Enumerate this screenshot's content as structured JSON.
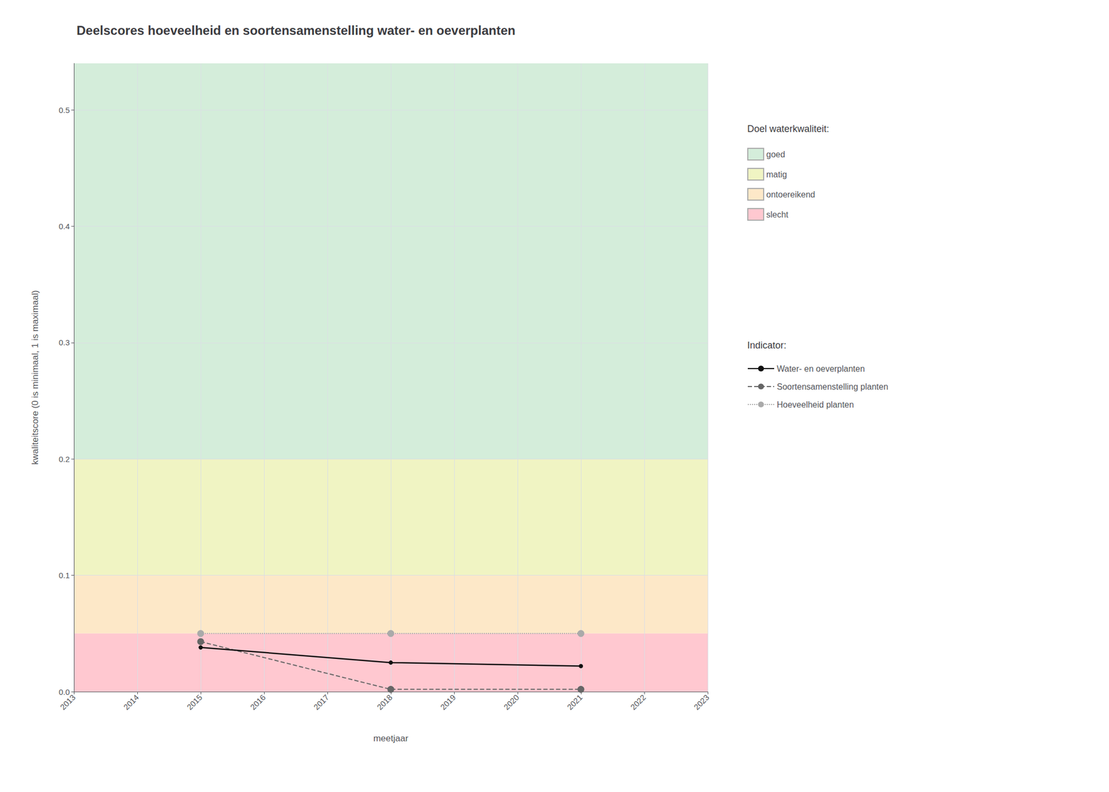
{
  "chart_data": {
    "type": "line",
    "title": "Deelscores hoeveelheid en soortensamenstelling water- en oeverplanten",
    "xlabel": "meetjaar",
    "ylabel": "kwaliteitscore (0 is minimaal, 1 is maximaal)",
    "xlim": [
      2013,
      2023
    ],
    "ylim": [
      0.0,
      0.54
    ],
    "xticks": [
      2013,
      2014,
      2015,
      2016,
      2017,
      2018,
      2019,
      2020,
      2021,
      2022,
      2023
    ],
    "yticks": [
      {
        "value": 0.0,
        "label": "0.0"
      },
      0.1,
      0.2,
      0.3,
      0.4,
      0.5
    ],
    "grid": true,
    "zone_legend_title": "Doel waterkwaliteit:",
    "zones": [
      {
        "name": "goed",
        "ymin": 0.2,
        "ymax": 0.54,
        "color": "#d4edda"
      },
      {
        "name": "matig",
        "ymin": 0.1,
        "ymax": 0.2,
        "color": "#f0f4c3"
      },
      {
        "name": "ontoereikend",
        "ymin": 0.05,
        "ymax": 0.1,
        "color": "#fde8c8"
      },
      {
        "name": "slecht",
        "ymin": 0.0,
        "ymax": 0.05,
        "color": "#ffc8d0"
      }
    ],
    "series_legend_title": "Indicator:",
    "x": [
      2015,
      2018,
      2021
    ],
    "series": [
      {
        "name": "Hoeveelheid planten",
        "color": "#aaaaaa",
        "line_style": "dotted",
        "marker": "circle",
        "values": [
          0.05,
          0.05,
          0.05
        ]
      },
      {
        "name": "Soortensamenstelling planten",
        "color": "#666666",
        "line_style": "dashed",
        "marker": "circle",
        "values": [
          0.043,
          0.002,
          0.002
        ]
      },
      {
        "name": "Water- en oeverplanten",
        "color": "#111111",
        "line_style": "solid",
        "marker": "circle",
        "values": [
          0.038,
          0.025,
          0.022
        ]
      }
    ]
  }
}
